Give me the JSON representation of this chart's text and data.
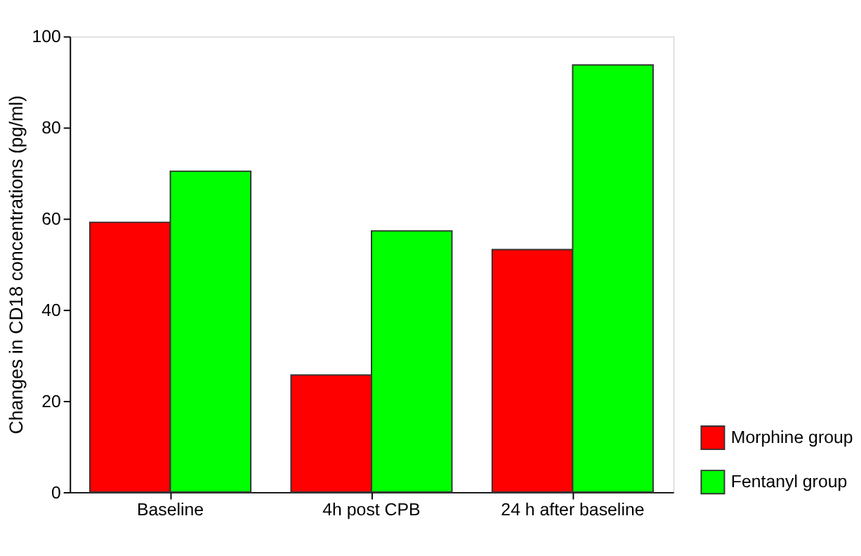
{
  "chart_data": {
    "type": "bar",
    "ylabel": "Changes in CD18 concentrations (pg/ml)",
    "categories": [
      "Baseline",
      "4h post CPB",
      "24 h after baseline"
    ],
    "series": [
      {
        "name": "Morphine group",
        "color": "#ff0000",
        "values": [
          59.2,
          25.7,
          53.2
        ]
      },
      {
        "name": "Fentanyl group",
        "color": "#00ff00",
        "values": [
          70.4,
          57.3,
          93.7
        ]
      }
    ],
    "ylim": [
      0,
      100
    ],
    "yticks": [
      0,
      20,
      40,
      60,
      80,
      100
    ],
    "grid": false,
    "legend": "bottom right"
  }
}
